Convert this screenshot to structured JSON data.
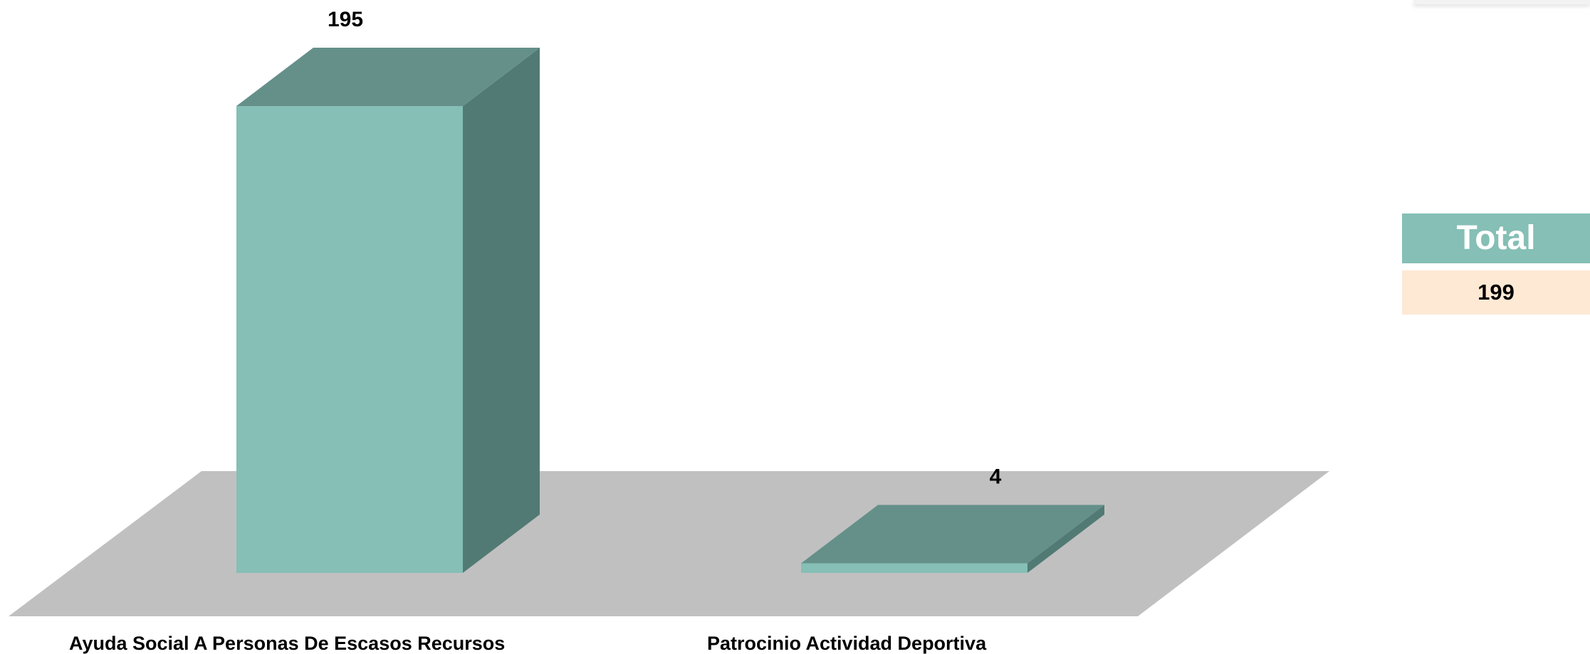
{
  "chart_data": {
    "type": "bar",
    "categories": [
      "Ayuda Social A Personas De Escasos Recursos",
      "Patrocinio Actividad Deportiva"
    ],
    "values": [
      195,
      4
    ],
    "ylim": [
      0,
      195
    ],
    "grid": false,
    "legend": "none"
  },
  "total": {
    "label": "Total",
    "value": "199"
  },
  "colors": {
    "bar_front": "#85bfb6",
    "bar_top": "#65908a",
    "bar_side": "#527a74",
    "floor": "#c0c0c0",
    "total_header_bg": "#85bfb6",
    "total_value_bg": "#fde9d4"
  }
}
